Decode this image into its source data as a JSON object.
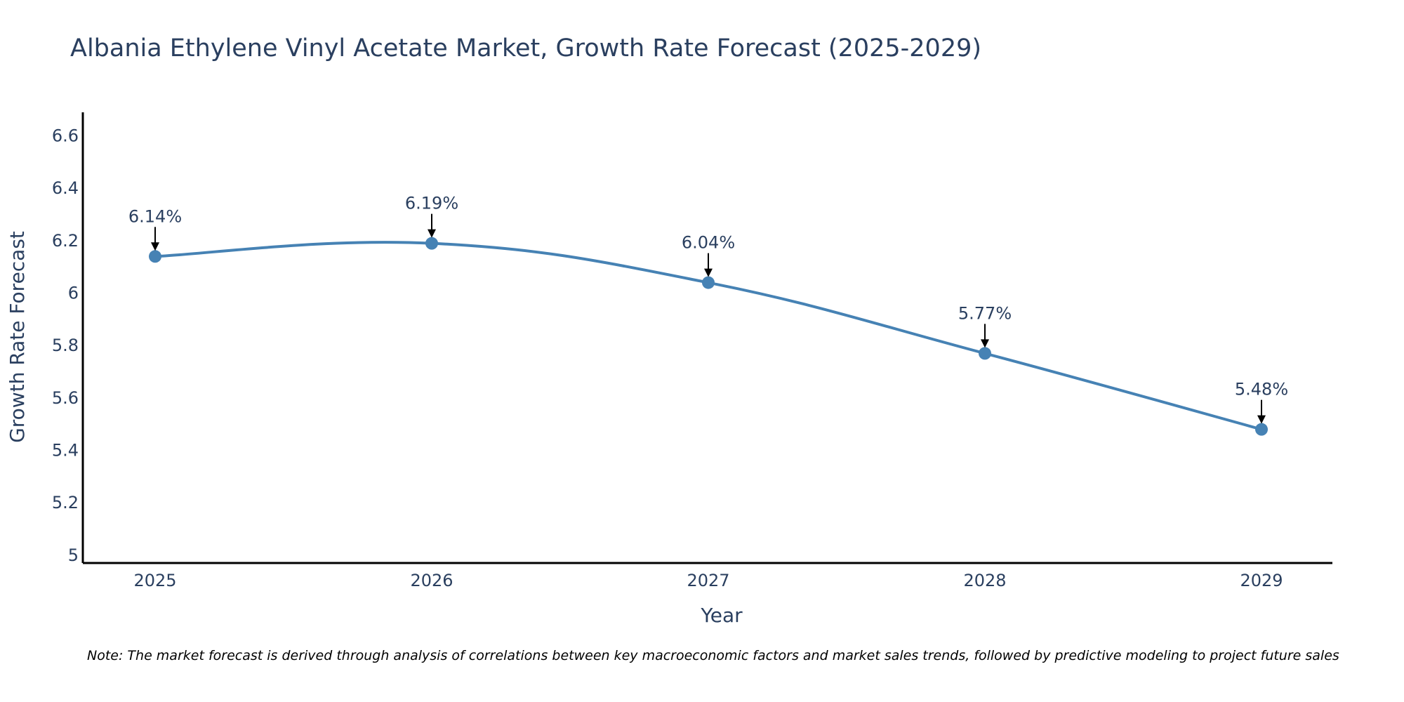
{
  "chart_data": {
    "type": "line",
    "title": "Albania Ethylene Vinyl Acetate Market, Growth Rate Forecast (2025-2029)",
    "xlabel": "Year",
    "ylabel": "Growth Rate Forecast",
    "categories": [
      "2025",
      "2026",
      "2027",
      "2028",
      "2029"
    ],
    "values": [
      6.14,
      6.19,
      6.04,
      5.77,
      5.48
    ],
    "data_labels": [
      "6.14%",
      "6.19%",
      "6.04%",
      "5.77%",
      "5.48%"
    ],
    "ylim": [
      4.97,
      6.69
    ],
    "y_ticks": [
      5,
      5.2,
      5.4,
      5.6,
      5.8,
      6,
      6.2,
      6.4,
      6.6
    ],
    "y_tick_labels": [
      "5",
      "5.2",
      "5.4",
      "5.6",
      "5.8",
      "6",
      "6.2",
      "6.4",
      "6.6"
    ],
    "grid": false,
    "line_color": "#4682b4",
    "marker_color": "#4682b4",
    "arrow_color": "#000000",
    "note": "Note: The market forecast is derived through analysis of correlations between key macroeconomic factors and market sales trends, followed by predictive modeling to project future sales"
  }
}
